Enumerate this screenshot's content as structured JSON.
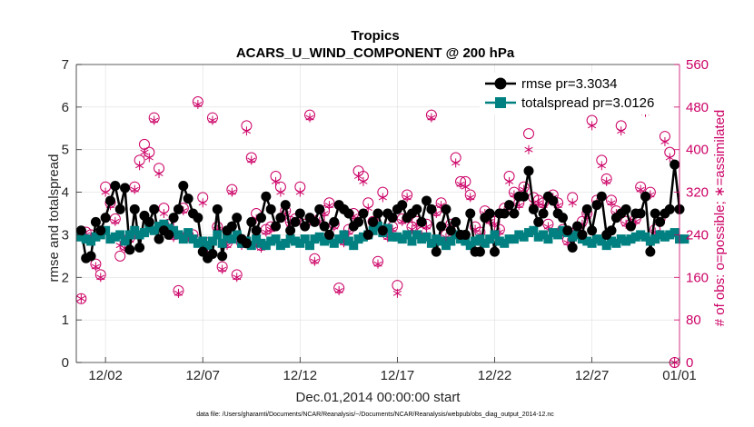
{
  "chart_data": {
    "type": "line",
    "title": "Tropics",
    "subtitle": "ACARS_U_WIND_COMPONENT @ 200 hPa",
    "xlabel": "Dec.01,2014 00:00:00 start",
    "ylabel": "rmse and totalspread",
    "ylabel_right": "# of obs: o=possible; ∗=assimilated",
    "footnote": "data file: /Users/gharamti/Documents/NCAR/Reanalysis/~/Documents/NCAR/Reanalysis/webpub/obs_diag_output_2014-12.nc",
    "xlim": [
      0.5,
      31.5
    ],
    "ylim": [
      0,
      7
    ],
    "ylim_right": [
      0,
      560
    ],
    "x_ticks": [
      {
        "value": 2,
        "label": "12/02"
      },
      {
        "value": 7,
        "label": "12/07"
      },
      {
        "value": 12,
        "label": "12/12"
      },
      {
        "value": 17,
        "label": "12/17"
      },
      {
        "value": 22,
        "label": "12/22"
      },
      {
        "value": 27,
        "label": "12/27"
      },
      {
        "value": 32,
        "label": "01/01"
      }
    ],
    "y_ticks": [
      "0",
      "1",
      "2",
      "3",
      "4",
      "5",
      "6",
      "7"
    ],
    "y_ticks_right": [
      "0",
      "80",
      "160",
      "240",
      "320",
      "400",
      "480",
      "560"
    ],
    "colors": {
      "rmse": "#000000",
      "totalspread": "#008080",
      "obs": "#cc0066"
    },
    "legend": [
      "rmse pr=3.3034",
      "totalspread pr=3.0126"
    ],
    "series": [
      {
        "name": "rmse",
        "values": [
          3.1,
          2.45,
          2.5,
          3.3,
          3.1,
          3.4,
          3.8,
          4.15,
          3.6,
          4.1,
          2.65,
          3.6,
          2.7,
          3.45,
          3.3,
          3.6,
          2.9,
          3.1,
          3.0,
          3.4,
          3.6,
          4.15,
          3.85,
          3.5,
          3.4,
          2.6,
          2.45,
          2.55,
          3.6,
          2.5,
          3.1,
          3.2,
          3.4,
          2.9,
          2.8,
          3.3,
          3.1,
          3.4,
          3.9,
          3.6,
          3.2,
          3.4,
          3.7,
          3.1,
          3.3,
          3.5,
          3.2,
          3.4,
          3.3,
          3.6,
          3.2,
          3.0,
          3.3,
          3.7,
          3.6,
          3.5,
          3.2,
          3.3,
          3.5,
          3.0,
          3.3,
          3.5,
          3.1,
          3.5,
          3.4,
          3.6,
          3.7,
          3.4,
          3.5,
          3.6,
          3.3,
          3.8,
          3.6,
          2.6,
          3.2,
          3.6,
          3.1,
          3.3,
          3.0,
          3.0,
          3.5,
          2.6,
          2.6,
          3.4,
          3.5,
          2.6,
          3.5,
          3.5,
          3.7,
          3.5,
          3.9,
          3.9,
          4.5,
          3.6,
          3.3,
          3.5,
          3.9,
          3.8,
          3.5,
          3.4,
          3.1,
          2.7,
          3.2,
          3.0,
          3.6,
          3.1,
          3.7,
          3.9,
          3.0,
          3.1,
          3.4,
          3.5,
          3.6,
          3.2,
          3.5,
          3.5,
          3.9,
          2.6,
          3.5,
          3.3,
          3.5,
          3.6,
          4.65,
          3.6
        ],
        "start": 0.75,
        "step": 0.25
      },
      {
        "name": "totalspread",
        "values": [
          2.95,
          2.9,
          2.85,
          2.95,
          3.0,
          3.1,
          2.9,
          2.95,
          3.0,
          2.85,
          3.0,
          3.1,
          3.0,
          3.05,
          3.15,
          3.1,
          3.2,
          3.25,
          3.15,
          3.1,
          3.0,
          2.9,
          3.05,
          2.9,
          2.8,
          2.85,
          2.75,
          2.85,
          3.0,
          2.8,
          2.95,
          2.9,
          3.0,
          2.8,
          2.85,
          2.75,
          2.9,
          2.8,
          2.75,
          2.85,
          2.9,
          2.75,
          2.8,
          2.9,
          2.85,
          2.8,
          2.9,
          2.75,
          2.9,
          2.95,
          2.85,
          2.9,
          2.8,
          2.9,
          3.0,
          2.85,
          2.75,
          2.9,
          2.95,
          3.0,
          3.1,
          3.2,
          3.05,
          3.15,
          2.95,
          2.95,
          2.9,
          3.0,
          2.85,
          3.0,
          2.9,
          2.95,
          2.8,
          2.9,
          2.85,
          2.75,
          2.85,
          3.0,
          2.9,
          2.85,
          2.75,
          2.85,
          2.9,
          2.8,
          2.9,
          3.0,
          2.85,
          2.8,
          2.9,
          2.9,
          3.0,
          2.95,
          3.05,
          3.1,
          2.95,
          3.0,
          2.9,
          3.05,
          3.0,
          3.1,
          3.05,
          2.95,
          3.0,
          2.9,
          2.85,
          2.8,
          2.9,
          2.85,
          2.75,
          2.85,
          2.8,
          2.9,
          2.85,
          2.9,
          2.95,
          3.0,
          2.95,
          2.85,
          2.9,
          3.0,
          2.95,
          3.0,
          3.05,
          2.9,
          2.9
        ],
        "start": 0.75,
        "step": 0.25
      }
    ],
    "obs_possible": [
      {
        "x": 0.75,
        "y": 120
      },
      {
        "x": 1.0,
        "y": 245
      },
      {
        "x": 1.25,
        "y": 240
      },
      {
        "x": 1.5,
        "y": 185
      },
      {
        "x": 1.75,
        "y": 165
      },
      {
        "x": 2.0,
        "y": 330
      },
      {
        "x": 2.25,
        "y": 300
      },
      {
        "x": 2.5,
        "y": 270
      },
      {
        "x": 2.75,
        "y": 200
      },
      {
        "x": 3.0,
        "y": 220
      },
      {
        "x": 3.25,
        "y": 235
      },
      {
        "x": 3.5,
        "y": 330
      },
      {
        "x": 3.75,
        "y": 380
      },
      {
        "x": 4.0,
        "y": 410
      },
      {
        "x": 4.25,
        "y": 395
      },
      {
        "x": 4.5,
        "y": 460
      },
      {
        "x": 4.75,
        "y": 365
      },
      {
        "x": 5.0,
        "y": 290
      },
      {
        "x": 5.25,
        "y": 260
      },
      {
        "x": 5.5,
        "y": 240
      },
      {
        "x": 5.75,
        "y": 135
      },
      {
        "x": 6.0,
        "y": 290
      },
      {
        "x": 6.25,
        "y": 240
      },
      {
        "x": 6.5,
        "y": 240
      },
      {
        "x": 6.75,
        "y": 490
      },
      {
        "x": 7.0,
        "y": 310
      },
      {
        "x": 7.25,
        "y": 225
      },
      {
        "x": 7.5,
        "y": 460
      },
      {
        "x": 7.75,
        "y": 255
      },
      {
        "x": 8.0,
        "y": 180
      },
      {
        "x": 8.25,
        "y": 225
      },
      {
        "x": 8.5,
        "y": 325
      },
      {
        "x": 8.75,
        "y": 165
      },
      {
        "x": 9.0,
        "y": 225
      },
      {
        "x": 9.25,
        "y": 445
      },
      {
        "x": 9.5,
        "y": 385
      },
      {
        "x": 9.75,
        "y": 280
      },
      {
        "x": 10.0,
        "y": 220
      },
      {
        "x": 10.25,
        "y": 250
      },
      {
        "x": 10.5,
        "y": 255
      },
      {
        "x": 10.75,
        "y": 350
      },
      {
        "x": 11.0,
        "y": 330
      },
      {
        "x": 11.25,
        "y": 285
      },
      {
        "x": 11.5,
        "y": 265
      },
      {
        "x": 11.75,
        "y": 270
      },
      {
        "x": 12.0,
        "y": 330
      },
      {
        "x": 12.25,
        "y": 260
      },
      {
        "x": 12.5,
        "y": 465
      },
      {
        "x": 12.75,
        "y": 195
      },
      {
        "x": 13.0,
        "y": 270
      },
      {
        "x": 13.25,
        "y": 285
      },
      {
        "x": 13.5,
        "y": 300
      },
      {
        "x": 13.75,
        "y": 260
      },
      {
        "x": 14.0,
        "y": 140
      },
      {
        "x": 14.25,
        "y": 230
      },
      {
        "x": 14.5,
        "y": 250
      },
      {
        "x": 14.75,
        "y": 280
      },
      {
        "x": 15.0,
        "y": 360
      },
      {
        "x": 15.25,
        "y": 350
      },
      {
        "x": 15.5,
        "y": 300
      },
      {
        "x": 15.75,
        "y": 265
      },
      {
        "x": 16.0,
        "y": 190
      },
      {
        "x": 16.25,
        "y": 320
      },
      {
        "x": 16.5,
        "y": 240
      },
      {
        "x": 16.75,
        "y": 255
      },
      {
        "x": 17.0,
        "y": 145
      },
      {
        "x": 17.25,
        "y": 270
      },
      {
        "x": 17.5,
        "y": 315
      },
      {
        "x": 17.75,
        "y": 255
      },
      {
        "x": 18.0,
        "y": 265
      },
      {
        "x": 18.25,
        "y": 245
      },
      {
        "x": 18.5,
        "y": 260
      },
      {
        "x": 18.75,
        "y": 465
      },
      {
        "x": 19.0,
        "y": 285
      },
      {
        "x": 19.25,
        "y": 300
      },
      {
        "x": 19.5,
        "y": 240
      },
      {
        "x": 19.75,
        "y": 260
      },
      {
        "x": 20.0,
        "y": 385
      },
      {
        "x": 20.25,
        "y": 340
      },
      {
        "x": 20.5,
        "y": 340
      },
      {
        "x": 20.75,
        "y": 315
      },
      {
        "x": 21.0,
        "y": 255
      },
      {
        "x": 21.25,
        "y": 245
      },
      {
        "x": 21.5,
        "y": 285
      },
      {
        "x": 21.75,
        "y": 270
      },
      {
        "x": 22.0,
        "y": 265
      },
      {
        "x": 22.25,
        "y": 250
      },
      {
        "x": 22.5,
        "y": 290
      },
      {
        "x": 22.75,
        "y": 350
      },
      {
        "x": 23.0,
        "y": 320
      },
      {
        "x": 23.25,
        "y": 300
      },
      {
        "x": 23.5,
        "y": 330
      },
      {
        "x": 23.75,
        "y": 430
      },
      {
        "x": 24.0,
        "y": 310
      },
      {
        "x": 24.25,
        "y": 305
      },
      {
        "x": 24.5,
        "y": 300
      },
      {
        "x": 24.75,
        "y": 260
      },
      {
        "x": 25.0,
        "y": 315
      },
      {
        "x": 25.25,
        "y": 300
      },
      {
        "x": 25.5,
        "y": 250
      },
      {
        "x": 25.75,
        "y": 230
      },
      {
        "x": 26.0,
        "y": 310
      },
      {
        "x": 26.25,
        "y": 250
      },
      {
        "x": 26.5,
        "y": 265
      },
      {
        "x": 26.75,
        "y": 280
      },
      {
        "x": 27.0,
        "y": 455
      },
      {
        "x": 27.25,
        "y": 305
      },
      {
        "x": 27.5,
        "y": 380
      },
      {
        "x": 27.75,
        "y": 345
      },
      {
        "x": 28.0,
        "y": 305
      },
      {
        "x": 28.25,
        "y": 285
      },
      {
        "x": 28.5,
        "y": 445
      },
      {
        "x": 28.75,
        "y": 265
      },
      {
        "x": 29.0,
        "y": 260
      },
      {
        "x": 29.25,
        "y": 270
      },
      {
        "x": 29.5,
        "y": 330
      },
      {
        "x": 29.75,
        "y": 480
      },
      {
        "x": 30.0,
        "y": 320
      },
      {
        "x": 30.25,
        "y": 250
      },
      {
        "x": 30.5,
        "y": 270
      },
      {
        "x": 30.75,
        "y": 425
      },
      {
        "x": 31.0,
        "y": 395
      },
      {
        "x": 31.25,
        "y": 0
      }
    ],
    "obs_assimilated": [
      {
        "x": 0.75,
        "y": 120
      },
      {
        "x": 1.0,
        "y": 240
      },
      {
        "x": 1.25,
        "y": 235
      },
      {
        "x": 1.5,
        "y": 180
      },
      {
        "x": 1.75,
        "y": 160
      },
      {
        "x": 2.0,
        "y": 320
      },
      {
        "x": 2.25,
        "y": 295
      },
      {
        "x": 2.5,
        "y": 265
      },
      {
        "x": 2.75,
        "y": 220
      },
      {
        "x": 3.0,
        "y": 215
      },
      {
        "x": 3.25,
        "y": 230
      },
      {
        "x": 3.5,
        "y": 325
      },
      {
        "x": 3.75,
        "y": 370
      },
      {
        "x": 4.0,
        "y": 395
      },
      {
        "x": 4.25,
        "y": 385
      },
      {
        "x": 4.5,
        "y": 455
      },
      {
        "x": 4.75,
        "y": 355
      },
      {
        "x": 5.0,
        "y": 280
      },
      {
        "x": 5.25,
        "y": 255
      },
      {
        "x": 5.5,
        "y": 235
      },
      {
        "x": 5.75,
        "y": 130
      },
      {
        "x": 6.0,
        "y": 285
      },
      {
        "x": 6.25,
        "y": 235
      },
      {
        "x": 6.5,
        "y": 235
      },
      {
        "x": 6.75,
        "y": 485
      },
      {
        "x": 7.0,
        "y": 300
      },
      {
        "x": 7.25,
        "y": 215
      },
      {
        "x": 7.5,
        "y": 455
      },
      {
        "x": 7.75,
        "y": 250
      },
      {
        "x": 8.0,
        "y": 175
      },
      {
        "x": 8.25,
        "y": 220
      },
      {
        "x": 8.5,
        "y": 320
      },
      {
        "x": 8.75,
        "y": 160
      },
      {
        "x": 9.0,
        "y": 220
      },
      {
        "x": 9.25,
        "y": 435
      },
      {
        "x": 9.5,
        "y": 380
      },
      {
        "x": 9.75,
        "y": 270
      },
      {
        "x": 10.0,
        "y": 215
      },
      {
        "x": 10.25,
        "y": 245
      },
      {
        "x": 10.5,
        "y": 250
      },
      {
        "x": 10.75,
        "y": 340
      },
      {
        "x": 11.0,
        "y": 320
      },
      {
        "x": 11.25,
        "y": 280
      },
      {
        "x": 11.5,
        "y": 260
      },
      {
        "x": 11.75,
        "y": 265
      },
      {
        "x": 12.0,
        "y": 320
      },
      {
        "x": 12.25,
        "y": 255
      },
      {
        "x": 12.5,
        "y": 460
      },
      {
        "x": 12.75,
        "y": 190
      },
      {
        "x": 13.0,
        "y": 265
      },
      {
        "x": 13.25,
        "y": 280
      },
      {
        "x": 13.5,
        "y": 295
      },
      {
        "x": 13.75,
        "y": 255
      },
      {
        "x": 14.0,
        "y": 135
      },
      {
        "x": 14.25,
        "y": 225
      },
      {
        "x": 14.5,
        "y": 245
      },
      {
        "x": 14.75,
        "y": 275
      },
      {
        "x": 15.0,
        "y": 350
      },
      {
        "x": 15.25,
        "y": 340
      },
      {
        "x": 15.5,
        "y": 290
      },
      {
        "x": 15.75,
        "y": 260
      },
      {
        "x": 16.0,
        "y": 185
      },
      {
        "x": 16.25,
        "y": 310
      },
      {
        "x": 16.5,
        "y": 235
      },
      {
        "x": 16.75,
        "y": 250
      },
      {
        "x": 17.0,
        "y": 130
      },
      {
        "x": 17.25,
        "y": 265
      },
      {
        "x": 17.5,
        "y": 310
      },
      {
        "x": 17.75,
        "y": 250
      },
      {
        "x": 18.0,
        "y": 260
      },
      {
        "x": 18.25,
        "y": 240
      },
      {
        "x": 18.5,
        "y": 255
      },
      {
        "x": 18.75,
        "y": 460
      },
      {
        "x": 19.0,
        "y": 280
      },
      {
        "x": 19.25,
        "y": 295
      },
      {
        "x": 19.5,
        "y": 235
      },
      {
        "x": 19.75,
        "y": 255
      },
      {
        "x": 20.0,
        "y": 375
      },
      {
        "x": 20.25,
        "y": 335
      },
      {
        "x": 20.5,
        "y": 330
      },
      {
        "x": 20.75,
        "y": 310
      },
      {
        "x": 21.0,
        "y": 250
      },
      {
        "x": 21.25,
        "y": 240
      },
      {
        "x": 21.5,
        "y": 280
      },
      {
        "x": 21.75,
        "y": 265
      },
      {
        "x": 22.0,
        "y": 260
      },
      {
        "x": 22.25,
        "y": 245
      },
      {
        "x": 22.5,
        "y": 285
      },
      {
        "x": 22.75,
        "y": 340
      },
      {
        "x": 23.0,
        "y": 315
      },
      {
        "x": 23.25,
        "y": 295
      },
      {
        "x": 23.5,
        "y": 325
      },
      {
        "x": 23.75,
        "y": 400
      },
      {
        "x": 24.0,
        "y": 300
      },
      {
        "x": 24.25,
        "y": 300
      },
      {
        "x": 24.5,
        "y": 295
      },
      {
        "x": 24.75,
        "y": 255
      },
      {
        "x": 25.0,
        "y": 310
      },
      {
        "x": 25.25,
        "y": 295
      },
      {
        "x": 25.5,
        "y": 245
      },
      {
        "x": 25.75,
        "y": 225
      },
      {
        "x": 26.0,
        "y": 300
      },
      {
        "x": 26.25,
        "y": 245
      },
      {
        "x": 26.5,
        "y": 260
      },
      {
        "x": 26.75,
        "y": 275
      },
      {
        "x": 27.0,
        "y": 445
      },
      {
        "x": 27.25,
        "y": 300
      },
      {
        "x": 27.5,
        "y": 370
      },
      {
        "x": 27.75,
        "y": 340
      },
      {
        "x": 28.0,
        "y": 300
      },
      {
        "x": 28.25,
        "y": 280
      },
      {
        "x": 28.5,
        "y": 435
      },
      {
        "x": 28.75,
        "y": 260
      },
      {
        "x": 29.0,
        "y": 255
      },
      {
        "x": 29.25,
        "y": 265
      },
      {
        "x": 29.5,
        "y": 325
      },
      {
        "x": 29.75,
        "y": 470
      },
      {
        "x": 30.0,
        "y": 315
      },
      {
        "x": 30.25,
        "y": 245
      },
      {
        "x": 30.5,
        "y": 265
      },
      {
        "x": 30.75,
        "y": 415
      },
      {
        "x": 31.0,
        "y": 385
      },
      {
        "x": 31.25,
        "y": 0
      }
    ]
  }
}
